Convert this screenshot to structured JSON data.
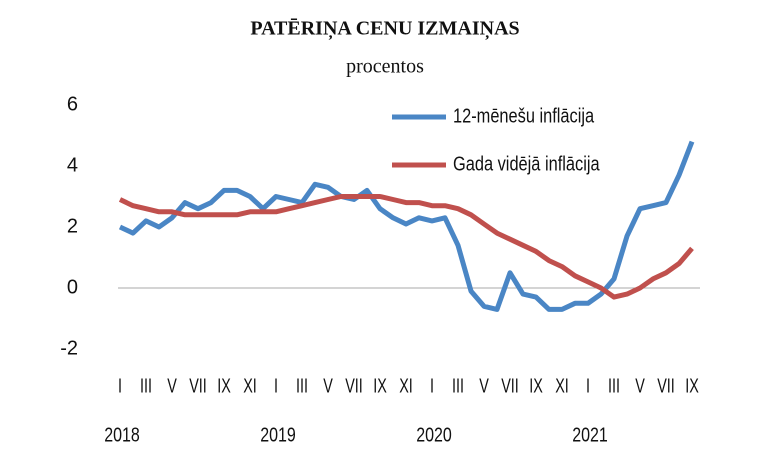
{
  "chart_data": {
    "type": "line",
    "title": "PATĒRIŅA CENU IZMAIŅAS",
    "subtitle": "procentos",
    "categories": [
      "I",
      null,
      "III",
      null,
      "V",
      null,
      "VII",
      null,
      "IX",
      null,
      "XI",
      null,
      "I",
      null,
      "III",
      null,
      "V",
      null,
      "VII",
      null,
      "IX",
      null,
      "XI",
      null,
      "I",
      null,
      "III",
      null,
      "V",
      null,
      "VII",
      null,
      "IX",
      null,
      "XI",
      null,
      "I",
      null,
      "III",
      null,
      "V",
      null,
      "VII",
      null,
      "IX"
    ],
    "years": [
      "2018",
      "2019",
      "2020",
      "2021"
    ],
    "series": [
      {
        "name": "12-mēnešu inflācija",
        "color": "#4a86c5",
        "values": [
          2.0,
          1.8,
          2.2,
          2.0,
          2.3,
          2.8,
          2.6,
          2.8,
          3.2,
          3.2,
          3.0,
          2.6,
          3.0,
          2.9,
          2.8,
          3.4,
          3.3,
          3.0,
          2.9,
          3.2,
          2.6,
          2.3,
          2.1,
          2.3,
          2.2,
          2.3,
          1.4,
          -0.1,
          -0.6,
          -0.7,
          0.5,
          -0.2,
          -0.3,
          -0.7,
          -0.7,
          -0.5,
          -0.5,
          -0.2,
          0.3,
          1.7,
          2.6,
          2.7,
          2.8,
          3.7,
          4.8
        ]
      },
      {
        "name": "Gada vidējā inflācija",
        "color": "#c0504d",
        "values": [
          2.9,
          2.7,
          2.6,
          2.5,
          2.5,
          2.4,
          2.4,
          2.4,
          2.4,
          2.4,
          2.5,
          2.5,
          2.5,
          2.6,
          2.7,
          2.8,
          2.9,
          3.0,
          3.0,
          3.0,
          3.0,
          2.9,
          2.8,
          2.8,
          2.7,
          2.7,
          2.6,
          2.4,
          2.1,
          1.8,
          1.6,
          1.4,
          1.2,
          0.9,
          0.7,
          0.4,
          0.2,
          0.0,
          -0.3,
          -0.2,
          0.0,
          0.3,
          0.5,
          0.8,
          1.3
        ]
      }
    ],
    "ylim": [
      -2,
      6
    ],
    "yticks": [
      -2,
      0,
      2,
      4,
      6
    ],
    "zero_line": true,
    "legend": "upper right"
  }
}
